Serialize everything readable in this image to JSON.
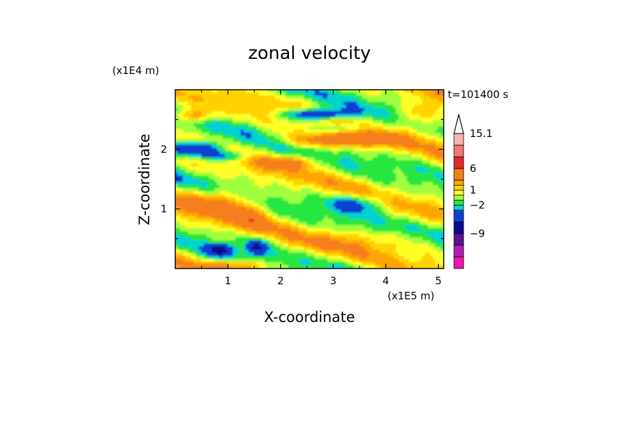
{
  "chart_data": {
    "type": "heatmap",
    "title": "zonal velocity",
    "xlabel": "X-coordinate",
    "ylabel": "Z-coordinate",
    "x_unit": "(x1E5 m)",
    "y_unit": "(x1E4 m)",
    "time_label": "t=101400 s",
    "xlim": [
      0,
      5.1
    ],
    "ylim": [
      0,
      3.0
    ],
    "x_ticks": [
      "1",
      "2",
      "3",
      "4",
      "5"
    ],
    "y_ticks": [
      "1",
      "2"
    ],
    "grid": false,
    "colorbar": {
      "labels": [
        "15.1",
        "6",
        "1",
        "−2",
        "−9"
      ],
      "levels_top_to_bottom": [
        15.1,
        12,
        9,
        6,
        3,
        2,
        1,
        0,
        -1,
        -2,
        -3,
        -6,
        -9,
        -12,
        -15.1
      ],
      "colors_top_to_bottom": [
        "#f7b4b4",
        "#f07878",
        "#e82828",
        "#f47f1b",
        "#ffa500",
        "#ffd200",
        "#ffff28",
        "#a0ff3c",
        "#28e640",
        "#00d2d2",
        "#0a41d2",
        "#0a0a8c",
        "#5a148c",
        "#b41eb4",
        "#f014b4"
      ],
      "extend_top": true
    },
    "field_description": "Zonal velocity field in the x-z plane. Layered bands tilted downward to the right: strong negative (blue) core near x=0-0.8, z=2.0; orange positive bands near z=2.5, z=1.5 and z=0.8-1.2; negative band near x=2.5-4, z=2.6; mostly weak (green/yellow) flow near the surface with localized negative cells near x=0.8-1.8, z=0.3.",
    "value_scale": "m/s"
  }
}
